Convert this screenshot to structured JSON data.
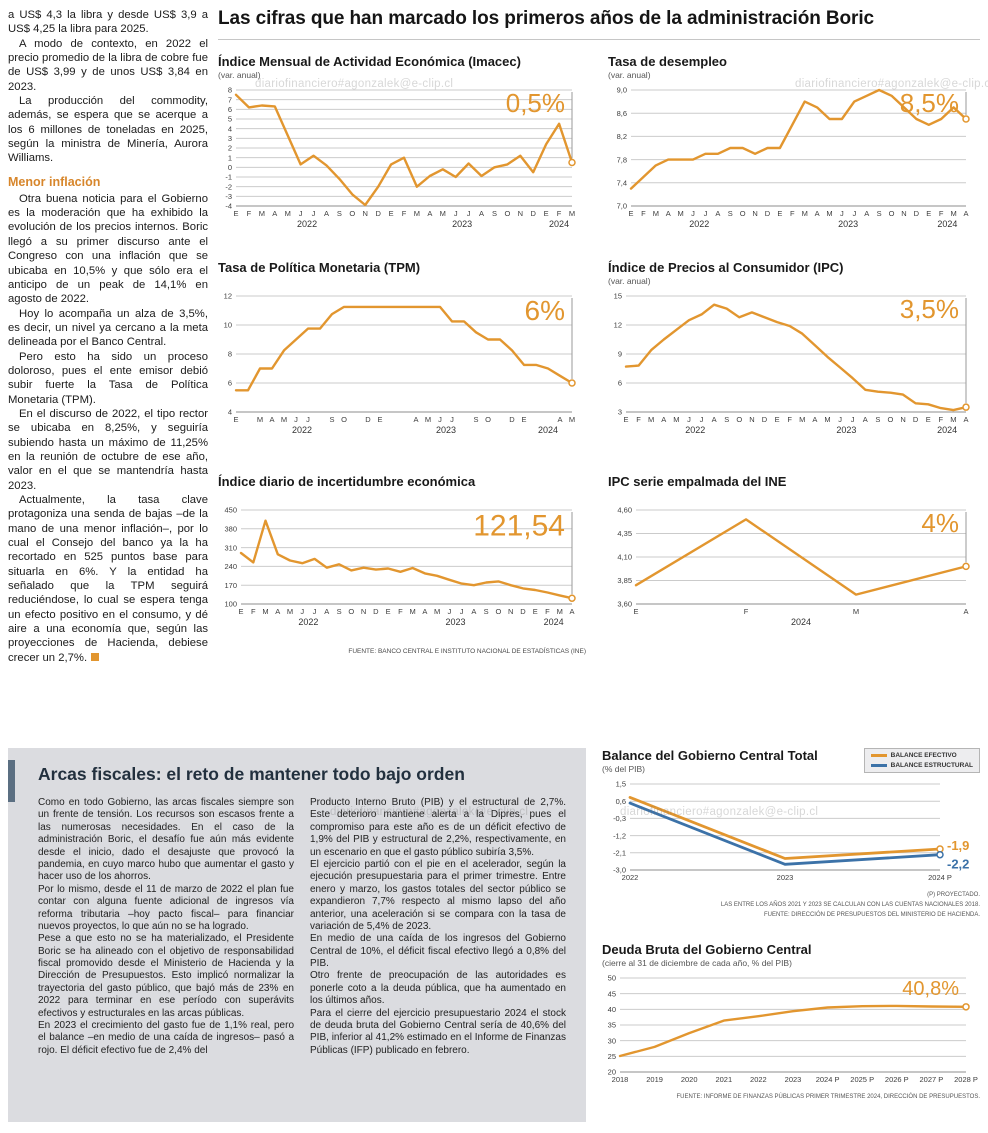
{
  "colors": {
    "orange": "#E2962F",
    "blue": "#3C72A8",
    "subhead_orange": "#D7862B",
    "box_gray": "#DBDCE0"
  },
  "watermark": "diariofinanciero#agonzalek@e-clip.cl",
  "headline": "Las cifras que han marcado los primeros años de la administración Boric",
  "left_column": {
    "subhead": "Menor inflación",
    "paragraphs": [
      "a US$ 4,3 la libra y desde US$ 3,9 a US$ 4,25 la libra para 2025.",
      "A modo de contexto, en 2022 el precio promedio de la libra de cobre fue de US$ 3,99 y de unos US$ 3,84 en 2023.",
      "La producción del commodity, además, se espera que se acerque a los 6 millones de toneladas en 2025, según la ministra de Minería, Aurora Williams.",
      "Otra buena noticia para el Gobierno es la moderación que ha exhibido la evolución de los precios internos. Boric llegó a su primer discurso ante el Congreso con una inflación que se ubicaba en 10,5% y que sólo era el anticipo de un peak de 14,1% en agosto de 2022.",
      "Hoy lo acompaña un alza de 3,5%, es decir, un nivel ya cercano a la meta delineada por el Banco Central.",
      "Pero esto ha sido un proceso doloroso, pues el ente emisor debió subir fuerte la Tasa de Política Monetaria (TPM).",
      "En el discurso de 2022, el tipo rector se ubicaba en 8,25%, y seguiría subiendo hasta un máximo de 11,25% en la reunión de octubre de ese año, valor en el que se mantendría hasta 2023.",
      "Actualmente, la tasa clave protagoniza una senda de bajas –de la mano de una menor inflación–, por lo cual el Consejo del banco ya la ha recortado en 525 puntos base para situarla en 6%. Y la entidad ha señalado que la TPM seguirá reduciéndose, lo cual se espera tenga un efecto positivo en el consumo, y dé aire a una economía que, según las proyecciones de Hacienda, debiese crecer un 2,7%."
    ]
  },
  "sources": {
    "top": "FUENTE: BANCO CENTRAL E INSTITUTO NACIONAL DE ESTADÍSTICAS (INE)",
    "balance_note1": "(P) PROYECTADO.",
    "balance_note2": "LAS ENTRE LOS AÑOS 2021 Y 2023 SE CALCULAN CON LAS CUENTAS NACIONALES 2018.",
    "balance_note3": "FUENTE: DIRECCIÓN DE PRESUPUESTOS DEL MINISTERIO DE HACIENDA.",
    "debt_source": "FUENTE: INFORME DE FINANZAS PÚBLICAS PRIMER TRIMESTRE 2024, DIRECCIÓN DE PRESUPUESTOS."
  },
  "fiscal_box": {
    "title": "Arcas fiscales: el reto de mantener todo bajo orden",
    "col1": [
      "Como en todo Gobierno, las arcas fiscales siempre son un frente de tensión. Los recursos son escasos frente a las numerosas necesidades. En el caso de la administración Boric, el desafío fue aún más evidente desde el inicio, dado el desajuste que provocó la pandemia, en cuyo marco hubo que aumentar el gasto y hacer uso de los ahorros.",
      "Por lo mismo, desde el 11 de marzo de 2022 el plan fue contar con alguna fuente adicional de ingresos vía reforma tributaria –hoy pacto fiscal– para financiar nuevos proyectos, lo que aún no se ha logrado.",
      "Pese a que esto no se ha materializado, el Presidente Boric se ha alineado con el objetivo de responsabilidad fiscal promovido desde el Ministerio de Hacienda y la Dirección de Presupuestos. Esto implicó normalizar la trayectoria del gasto público, que bajó más de 23% en 2022 para terminar en ese período con superávits efectivos y estructurales en las arcas públicas.",
      "En 2023 el crecimiento del gasto fue de 1,1% real, pero el balance –en medio de una caída de ingresos– pasó a rojo. El déficit efectivo fue de 2,4% del"
    ],
    "col2": [
      "Producto Interno Bruto (PIB) y el estructural de 2,7%. Este deterioro mantiene alerta a la Dipres, pues el compromiso para este año es de un déficit efectivo de 1,9% del PIB y estructural de 2,2%, respectivamente, en un escenario en que el gasto público subiría 3,5%.",
      "El ejercicio partió con el pie en el acelerador, según la ejecución presupuestaria para el primer trimestre. Entre enero y marzo, los gastos totales del sector público se expandieron 7,7% respecto al mismo lapso del año anterior, una aceleración si se compara con la tasa de variación de 5,4% de 2023.",
      "En medio de una caída de los ingresos del Gobierno Central de 10%, el déficit fiscal efectivo llegó a 0,8% del PIB.",
      "Otro frente de preocupación de las autoridades es ponerle coto a la deuda pública, que ha aumentado en los últimos años.",
      "Para el cierre del ejercicio presupuestario 2024 el stock de deuda bruta del Gobierno Central sería de 40,6% del PIB, inferior al 41,2% estimado en el Informe de Finanzas Públicas (IFP) publicado en febrero."
    ]
  },
  "chart_data": [
    {
      "id": "imacec",
      "type": "line",
      "title": "Índice Mensual de Actividad Económica (Imacec)",
      "subtitle": "(var. anual)",
      "callout": "0,5%",
      "ylim": [
        -4,
        8
      ],
      "ytick_vals": [
        8,
        7,
        6,
        5,
        4,
        3,
        2,
        1,
        0,
        -1,
        -2,
        -3,
        -4
      ],
      "ytick_labels": [
        "8",
        "7",
        "6",
        "5",
        "4",
        "3",
        "2",
        "1",
        "0",
        "-1",
        "-2",
        "-3",
        "-4"
      ],
      "x_labels": [
        "E",
        "F",
        "M",
        "A",
        "M",
        "J",
        "J",
        "A",
        "S",
        "O",
        "N",
        "D",
        "E",
        "F",
        "M",
        "A",
        "M",
        "J",
        "J",
        "A",
        "S",
        "O",
        "N",
        "D",
        "E",
        "F",
        "M"
      ],
      "year_groups": [
        {
          "label": "2022",
          "from": 0,
          "to": 11
        },
        {
          "label": "2023",
          "from": 12,
          "to": 23
        },
        {
          "label": "2024",
          "from": 24,
          "to": 26
        }
      ],
      "series": [
        {
          "name": "Imacec",
          "color": "#E2962F",
          "values": [
            7.5,
            6.2,
            6.4,
            6.3,
            3.3,
            0.3,
            1.2,
            0.2,
            -1.2,
            -2.8,
            -3.9,
            -2.0,
            0.3,
            1.0,
            -2.0,
            -0.9,
            -0.2,
            -1.0,
            0.4,
            -0.9,
            0.0,
            0.3,
            1.2,
            -0.5,
            2.4,
            4.5,
            0.5
          ]
        }
      ]
    },
    {
      "id": "desempleo",
      "type": "line",
      "title": "Tasa de desempleo",
      "subtitle": "(var. anual)",
      "callout": "8,5%",
      "ylim": [
        7.0,
        9.0
      ],
      "ytick_vals": [
        9.0,
        8.6,
        8.2,
        7.8,
        7.4,
        7.0
      ],
      "ytick_labels": [
        "9,0",
        "8,6",
        "8,2",
        "7,8",
        "7,4",
        "7,0"
      ],
      "x_labels": [
        "E",
        "F",
        "M",
        "A",
        "M",
        "J",
        "J",
        "A",
        "S",
        "O",
        "N",
        "D",
        "E",
        "F",
        "M",
        "A",
        "M",
        "J",
        "J",
        "A",
        "S",
        "O",
        "N",
        "D",
        "E",
        "F",
        "M",
        "A"
      ],
      "year_groups": [
        {
          "label": "2022",
          "from": 0,
          "to": 11
        },
        {
          "label": "2023",
          "from": 12,
          "to": 23
        },
        {
          "label": "2024",
          "from": 24,
          "to": 27
        }
      ],
      "series": [
        {
          "name": "Tasa de desempleo",
          "color": "#E2962F",
          "values": [
            7.3,
            7.5,
            7.7,
            7.8,
            7.8,
            7.8,
            7.9,
            7.9,
            8.0,
            8.0,
            7.9,
            8.0,
            8.0,
            8.4,
            8.8,
            8.7,
            8.5,
            8.5,
            8.8,
            8.9,
            9.0,
            8.9,
            8.7,
            8.5,
            8.4,
            8.5,
            8.7,
            8.5
          ]
        }
      ]
    },
    {
      "id": "tpm",
      "type": "line",
      "title": "Tasa de Política Monetaria (TPM)",
      "subtitle": "",
      "callout": "6%",
      "ylim": [
        4,
        12
      ],
      "ytick_vals": [
        12,
        10,
        8,
        6,
        4
      ],
      "ytick_labels": [
        "12",
        "10",
        "8",
        "6",
        "4"
      ],
      "x_labels": [
        "E",
        "",
        "M",
        "A",
        "M",
        "J",
        "J",
        "",
        "S",
        "O",
        "",
        "D",
        "E",
        "",
        "",
        "A",
        "M",
        "J",
        "J",
        "",
        "S",
        "O",
        "",
        "D",
        "E",
        "",
        "",
        "A",
        "M"
      ],
      "year_groups": [
        {
          "label": "2022",
          "from": 0,
          "to": 11
        },
        {
          "label": "2023",
          "from": 12,
          "to": 23
        },
        {
          "label": "2024",
          "from": 24,
          "to": 28
        }
      ],
      "series": [
        {
          "name": "TPM",
          "color": "#E2962F",
          "values": [
            5.5,
            5.5,
            7.0,
            7.0,
            8.25,
            9.0,
            9.75,
            9.75,
            10.75,
            11.25,
            11.25,
            11.25,
            11.25,
            11.25,
            11.25,
            11.25,
            11.25,
            11.25,
            10.25,
            10.25,
            9.5,
            9.0,
            9.0,
            8.25,
            7.25,
            7.25,
            7.0,
            6.5,
            6.0
          ]
        }
      ]
    },
    {
      "id": "ipc",
      "type": "line",
      "title": "Índice de Precios al Consumidor (IPC)",
      "subtitle": "(var. anual)",
      "callout": "3,5%",
      "ylim": [
        3,
        15
      ],
      "ytick_vals": [
        15,
        12,
        9,
        6,
        3
      ],
      "ytick_labels": [
        "15",
        "12",
        "9",
        "6",
        "3"
      ],
      "x_labels": [
        "E",
        "F",
        "M",
        "A",
        "M",
        "J",
        "J",
        "A",
        "S",
        "O",
        "N",
        "D",
        "E",
        "F",
        "M",
        "A",
        "M",
        "J",
        "J",
        "A",
        "S",
        "O",
        "N",
        "D",
        "E",
        "F",
        "M",
        "A"
      ],
      "year_groups": [
        {
          "label": "2022",
          "from": 0,
          "to": 11
        },
        {
          "label": "2023",
          "from": 12,
          "to": 23
        },
        {
          "label": "2024",
          "from": 24,
          "to": 27
        }
      ],
      "series": [
        {
          "name": "IPC",
          "color": "#E2962F",
          "values": [
            7.7,
            7.8,
            9.4,
            10.5,
            11.5,
            12.5,
            13.1,
            14.1,
            13.7,
            12.8,
            13.3,
            12.8,
            12.3,
            11.9,
            11.1,
            9.9,
            8.7,
            7.6,
            6.5,
            5.3,
            5.1,
            5.0,
            4.8,
            3.9,
            3.8,
            3.4,
            3.2,
            3.5
          ]
        }
      ]
    },
    {
      "id": "incertidumbre",
      "type": "line",
      "title": "Índice diario de incertidumbre económica",
      "subtitle": "",
      "callout": "121,54",
      "ylim": [
        100,
        450
      ],
      "ytick_vals": [
        450,
        380,
        310,
        240,
        170,
        100
      ],
      "ytick_labels": [
        "450",
        "380",
        "310",
        "240",
        "170",
        "100"
      ],
      "x_labels": [
        "E",
        "F",
        "M",
        "A",
        "M",
        "J",
        "J",
        "A",
        "S",
        "O",
        "N",
        "D",
        "E",
        "F",
        "M",
        "A",
        "M",
        "J",
        "J",
        "A",
        "S",
        "O",
        "N",
        "D",
        "E",
        "F",
        "M",
        "A"
      ],
      "year_groups": [
        {
          "label": "2022",
          "from": 0,
          "to": 11
        },
        {
          "label": "2023",
          "from": 12,
          "to": 23
        },
        {
          "label": "2024",
          "from": 24,
          "to": 27
        }
      ],
      "series": [
        {
          "name": "Incertidumbre económica",
          "color": "#E2962F",
          "values": [
            290,
            255,
            410,
            285,
            262,
            252,
            268,
            235,
            248,
            225,
            235,
            228,
            232,
            220,
            234,
            214,
            205,
            190,
            176,
            170,
            180,
            184,
            170,
            158,
            152,
            143,
            132,
            121.54
          ]
        }
      ]
    },
    {
      "id": "ipc_ine",
      "type": "line",
      "title": "IPC serie empalmada del INE",
      "subtitle": "",
      "callout": "4%",
      "ylim": [
        3.6,
        4.6
      ],
      "ytick_vals": [
        4.6,
        4.35,
        4.1,
        3.85,
        3.6
      ],
      "ytick_labels": [
        "4,60",
        "4,35",
        "4,10",
        "3,85",
        "3,60"
      ],
      "x_labels": [
        "E",
        "F",
        "M",
        "A"
      ],
      "year_groups": [
        {
          "label": "2024",
          "from": 0,
          "to": 3
        }
      ],
      "series": [
        {
          "name": "IPC serie empalmada",
          "color": "#E2962F",
          "values": [
            3.8,
            4.5,
            3.7,
            4.0
          ]
        }
      ]
    },
    {
      "id": "balance",
      "type": "line",
      "title": "Balance del Gobierno Central Total",
      "subtitle": "(% del PIB)",
      "ylim": [
        -3.0,
        1.5
      ],
      "ytick_vals": [
        1.5,
        0.6,
        -0.3,
        -1.2,
        -2.1,
        -3.0
      ],
      "ytick_labels": [
        "1,5",
        "0,6",
        "-0,3",
        "-1,2",
        "-2,1",
        "-3,0"
      ],
      "x_labels": [
        "2022",
        "2023",
        "2024 P"
      ],
      "series": [
        {
          "name": "BALANCE EFECTIVO",
          "color": "#E2962F",
          "values": [
            0.8,
            -2.4,
            -1.9
          ],
          "callout": "-1,9"
        },
        {
          "name": "BALANCE ESTRUCTURAL",
          "color": "#3C72A8",
          "values": [
            0.5,
            -2.7,
            -2.2
          ],
          "callout": "-2,2"
        }
      ]
    },
    {
      "id": "deuda",
      "type": "line",
      "title": "Deuda Bruta del Gobierno Central",
      "subtitle": "(cierre al 31 de diciembre de cada año, % del PIB)",
      "callout": "40,8%",
      "ylim": [
        20,
        50
      ],
      "ytick_vals": [
        50,
        45,
        40,
        35,
        30,
        25,
        20
      ],
      "ytick_labels": [
        "50",
        "45",
        "40",
        "35",
        "30",
        "25",
        "20"
      ],
      "x_labels": [
        "2018",
        "2019",
        "2020",
        "2021",
        "2022",
        "2023",
        "2024 P",
        "2025 P",
        "2026 P",
        "2027 P",
        "2028 P"
      ],
      "series": [
        {
          "name": "Deuda bruta",
          "color": "#E2962F",
          "values": [
            25.1,
            28.0,
            32.4,
            36.4,
            37.8,
            39.4,
            40.6,
            41.0,
            41.1,
            40.9,
            40.8
          ]
        }
      ]
    }
  ]
}
